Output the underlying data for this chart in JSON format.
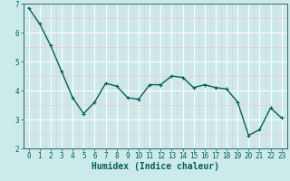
{
  "x": [
    0,
    1,
    2,
    3,
    4,
    5,
    6,
    7,
    8,
    9,
    10,
    11,
    12,
    13,
    14,
    15,
    16,
    17,
    18,
    19,
    20,
    21,
    22,
    23
  ],
  "y": [
    6.85,
    6.3,
    5.55,
    4.65,
    3.75,
    3.2,
    3.6,
    4.25,
    4.15,
    3.75,
    3.7,
    4.2,
    4.2,
    4.5,
    4.45,
    4.1,
    4.2,
    4.1,
    4.05,
    3.6,
    2.45,
    2.65,
    3.4,
    3.05
  ],
  "line_color": "#006060",
  "marker": "+",
  "marker_size": 3,
  "xlabel": "Humidex (Indice chaleur)",
  "ylim": [
    2,
    7
  ],
  "xlim": [
    -0.5,
    23.5
  ],
  "yticks": [
    2,
    3,
    4,
    5,
    6,
    7
  ],
  "xticks": [
    0,
    1,
    2,
    3,
    4,
    5,
    6,
    7,
    8,
    9,
    10,
    11,
    12,
    13,
    14,
    15,
    16,
    17,
    18,
    19,
    20,
    21,
    22,
    23
  ],
  "bg_color": "#cceaea",
  "grid_color": "#ffffff",
  "grid_minor_color": "#f0c8c8",
  "axes_color": "#336666",
  "tick_label_color": "#006060",
  "xlabel_color": "#006060",
  "xlabel_fontsize": 7,
  "tick_fontsize": 5.5,
  "linewidth": 1.0,
  "markeredgewidth": 0.8
}
